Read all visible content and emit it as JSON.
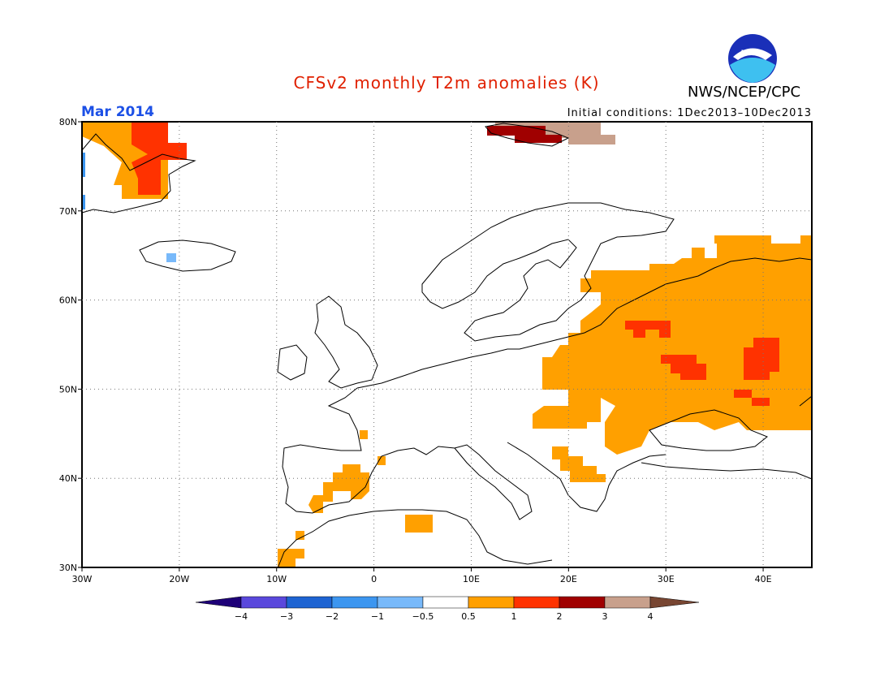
{
  "header": {
    "title": "CFSv2 monthly T2m anomalies (K)",
    "org": "NWS/NCEP/CPC",
    "month": "Mar 2014",
    "initial_conditions": "Initial conditions: 1Dec2013–10Dec2013",
    "title_color": "#e02000",
    "month_color": "#1c50e6"
  },
  "map": {
    "lon_range": [
      -30,
      45
    ],
    "lat_range": [
      30,
      80
    ],
    "lat_labels": [
      "30N",
      "40N",
      "50N",
      "60N",
      "70N",
      "80N"
    ],
    "lon_labels": [
      "30W",
      "20W",
      "10W",
      "0",
      "10E",
      "20E",
      "30E",
      "40E"
    ],
    "grid": "dotted"
  },
  "legend": {
    "labels": [
      "−4",
      "−3",
      "−2",
      "−1",
      "−0.5",
      "0.5",
      "1",
      "2",
      "3",
      "4"
    ],
    "colors": [
      "#1e0078",
      "#5a48dc",
      "#1e64d2",
      "#3c96f0",
      "#78b9fa",
      "#ffffff",
      "#ffa000",
      "#ff3200",
      "#a00000",
      "#c8a08c",
      "#784632"
    ]
  },
  "anomalies": [
    {
      "level": "0.5-1",
      "color": "#ffa000"
    },
    {
      "level": "1-2",
      "color": "#ff3200"
    },
    {
      "level": "2-3",
      "color": "#a00000"
    },
    {
      "level": "3-4",
      "color": "#c8a08c"
    },
    {
      "level": "-1--0.5",
      "color": "#78b9fa"
    },
    {
      "level": "-2--1",
      "color": "#3c96f0"
    }
  ]
}
